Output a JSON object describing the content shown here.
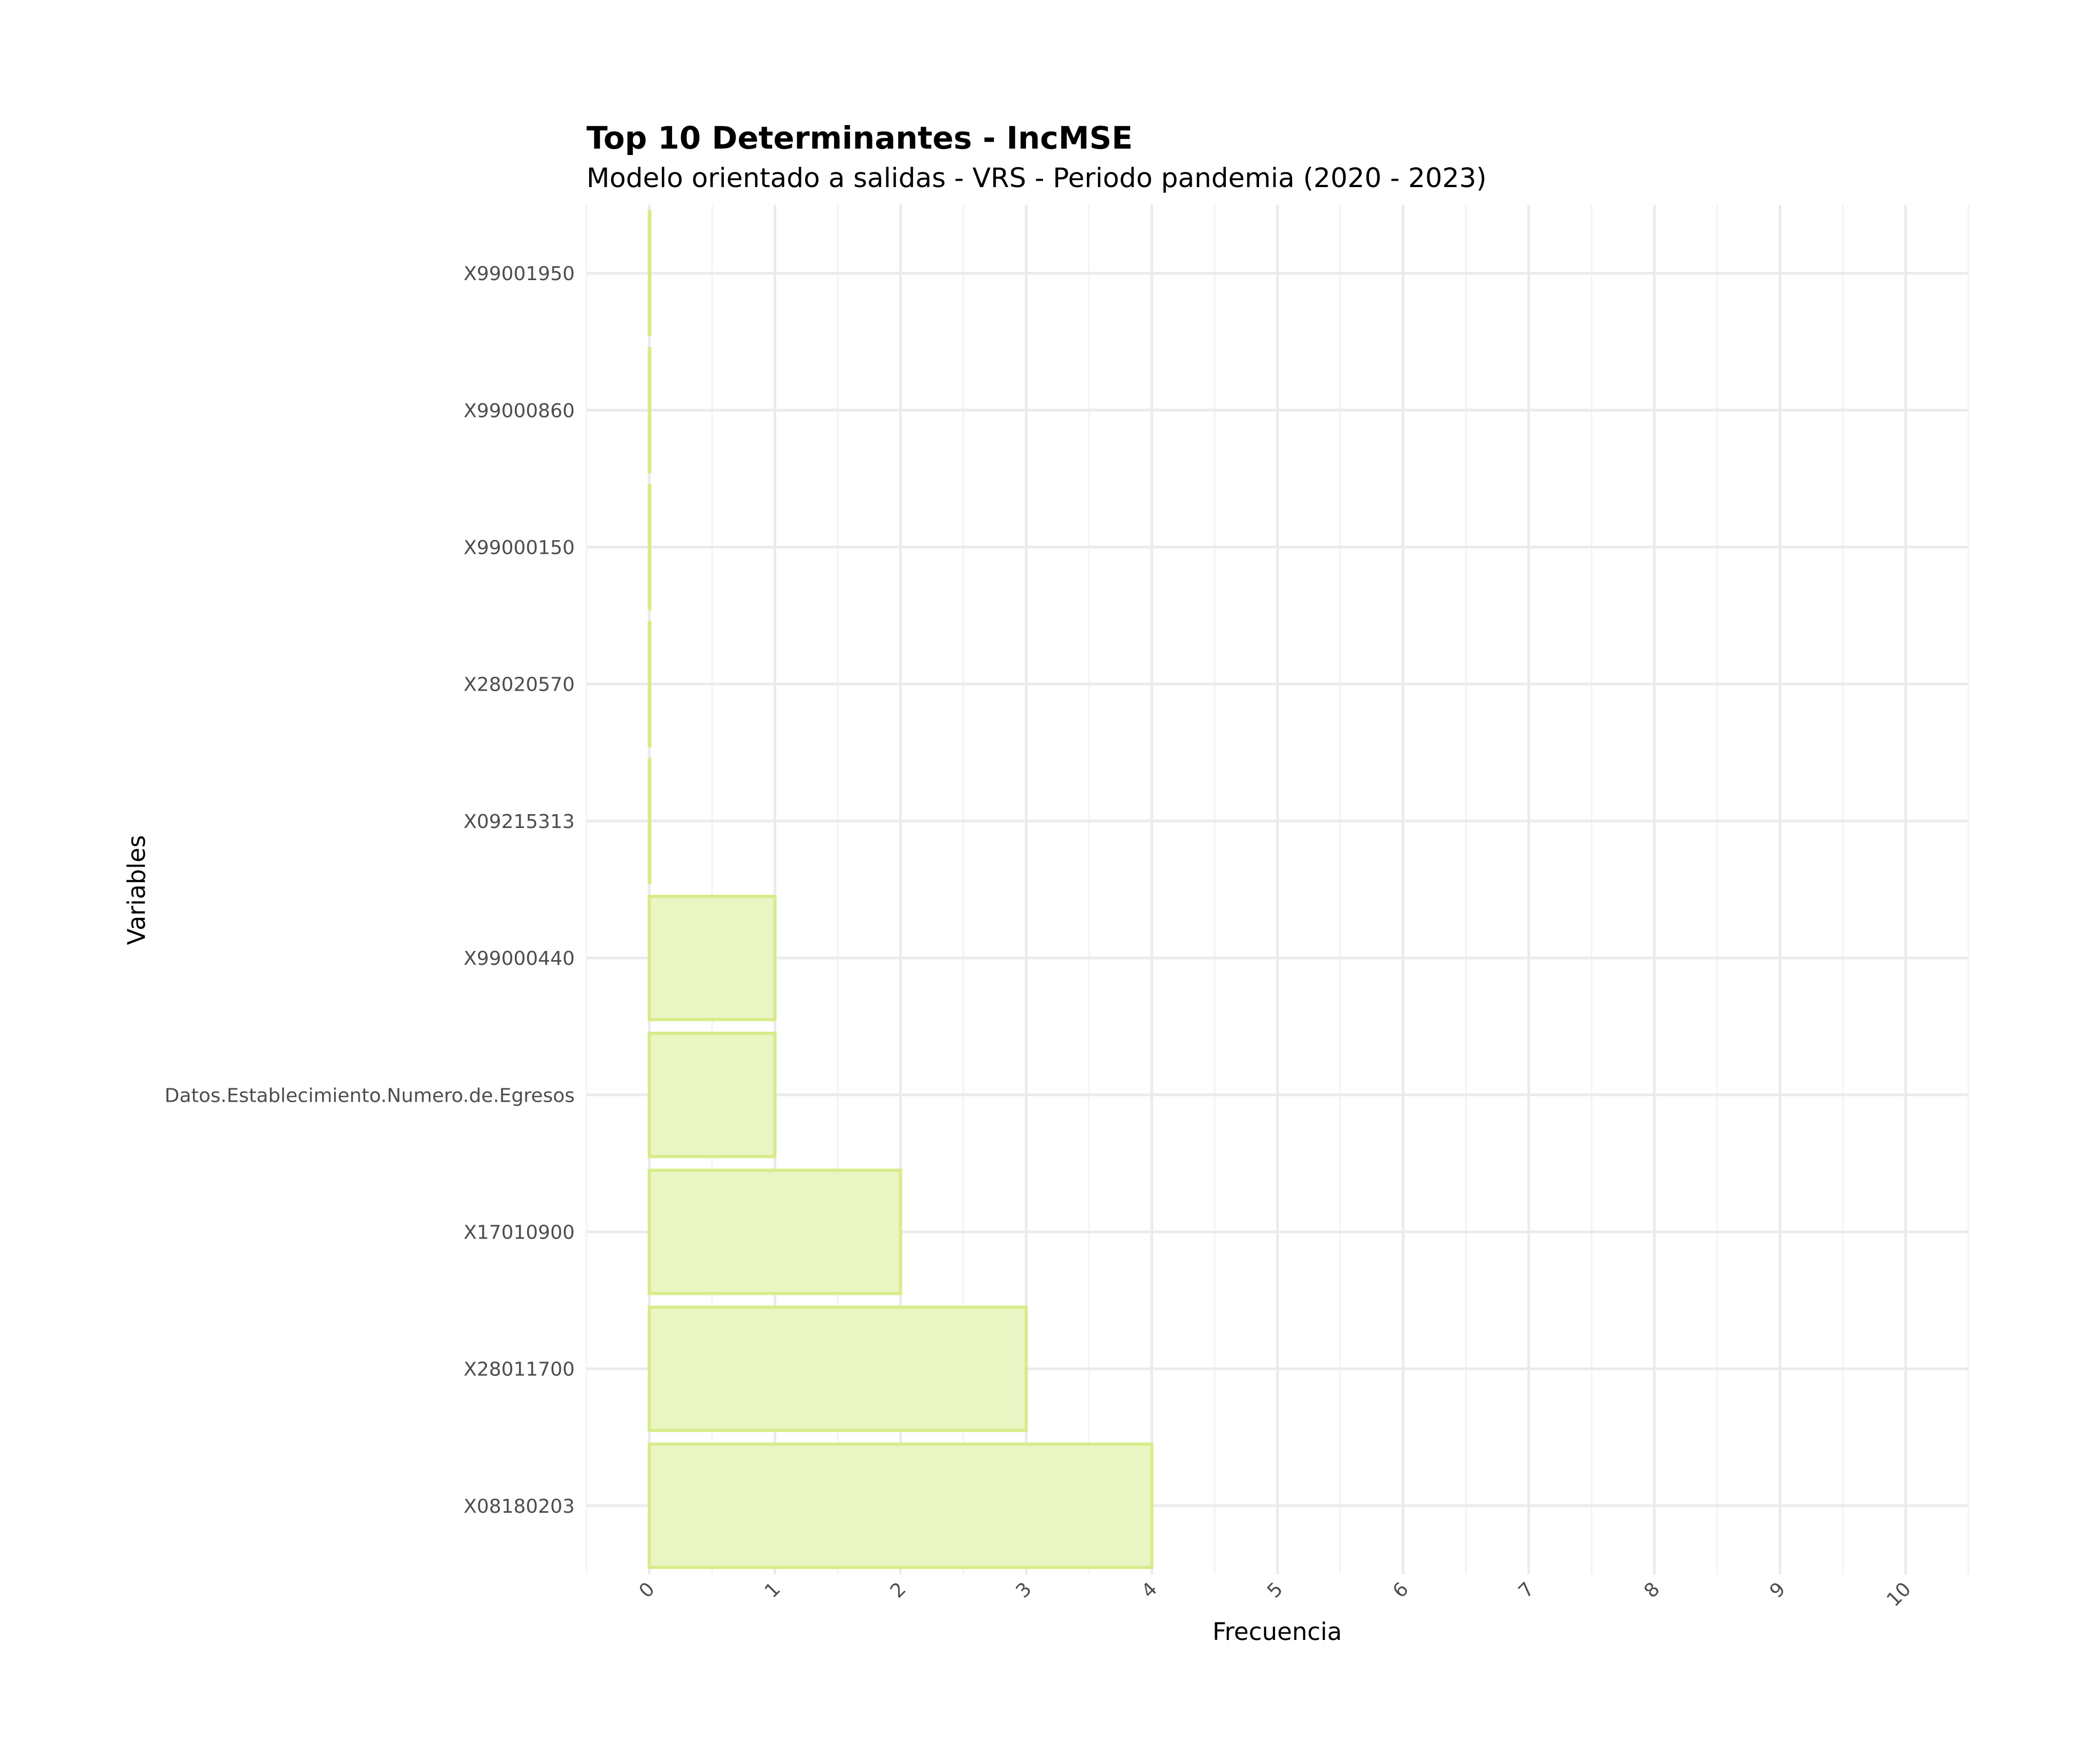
{
  "chart_data": {
    "type": "bar",
    "orientation": "horizontal",
    "title": "Top 10 Determinantes - IncMSE",
    "subtitle": "Modelo orientado a salidas - VRS - Periodo pandemia (2020 - 2023)",
    "xlabel": "Frecuencia",
    "ylabel": "Variables",
    "xlim": [
      -0.5,
      10.5
    ],
    "x_ticks": [
      "0",
      "1",
      "2",
      "3",
      "4",
      "5",
      "6",
      "7",
      "8",
      "9",
      "10"
    ],
    "categories": [
      "X99001950",
      "X99000860",
      "X99000150",
      "X28020570",
      "X09215313",
      "X99000440",
      "Datos.Establecimiento.Numero.de.Egresos",
      "X17010900",
      "X28011700",
      "X08180203"
    ],
    "values": [
      0,
      0,
      0,
      0,
      0,
      1,
      1,
      2,
      3,
      4
    ],
    "bar_fill": "#ebf5c4",
    "bar_stroke": "#d6ec8a",
    "grid": true,
    "legend": "none"
  }
}
